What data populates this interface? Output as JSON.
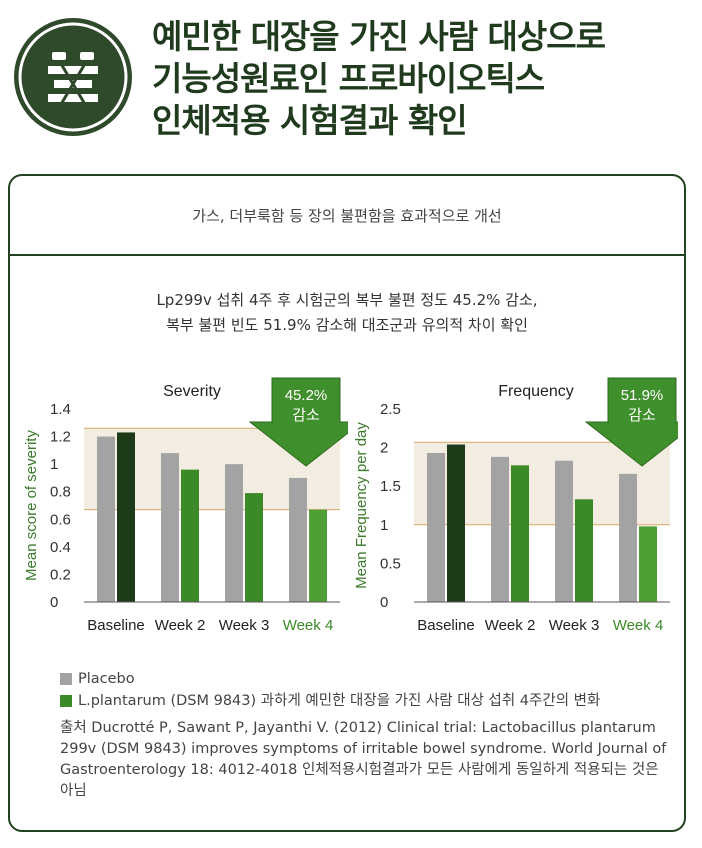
{
  "header": {
    "title_lines": [
      "예민한 대장을 가진 사람 대상으로",
      "기능성원료인 프로바이오틱스",
      "인체적용 시험결과 확인"
    ]
  },
  "card": {
    "heading": "가스, 더부룩함 등 장의 불편함을 효과적으로 개선",
    "summary_lines": [
      "Lp299v 섭취 4주 후 시험군의 복부 불편 정도 45.2% 감소,",
      "복부 불편 빈도 51.9% 감소해 대조군과 유의적 차이 확인"
    ]
  },
  "colors": {
    "placebo": "#a3a3a3",
    "treatment_dark": "#1d3b19",
    "treatment": "#3b8a27",
    "treatment_light": "#4f9f35",
    "band": "#f3ece1",
    "band_line": "#d8a86a",
    "badge": "#3f8f2c"
  },
  "chart_data": [
    {
      "type": "bar",
      "title": "Severity",
      "ylabel": "Mean score of severity",
      "categories": [
        "Baseline",
        "Week 2",
        "Week 3",
        "Week 4"
      ],
      "ylim": [
        0,
        1.4
      ],
      "yticks": [
        "0",
        "0.2",
        "0.4",
        "0.6",
        "0.8",
        "1",
        "1.2",
        "1.4"
      ],
      "ytick_values": [
        0,
        0.2,
        0.4,
        0.6,
        0.8,
        1.0,
        1.2,
        1.4
      ],
      "series": [
        {
          "name": "Placebo",
          "values": [
            1.2,
            1.08,
            1.0,
            0.9
          ]
        },
        {
          "name": "L.plantarum (DSM 9843)",
          "values": [
            1.23,
            0.96,
            0.79,
            0.67
          ]
        }
      ],
      "band": [
        0.67,
        1.26
      ],
      "badge": {
        "value": "45.2%",
        "label": "감소"
      }
    },
    {
      "type": "bar",
      "title": "Frequency",
      "ylabel": "Mean Frequency per day",
      "categories": [
        "Baseline",
        "Week 2",
        "Week 3",
        "Week 4"
      ],
      "ylim": [
        0,
        2.5
      ],
      "yticks": [
        "0",
        "0.5",
        "1",
        "1.5",
        "2",
        "2.5"
      ],
      "ytick_values": [
        0,
        0.5,
        1.0,
        1.5,
        2.0,
        2.5
      ],
      "series": [
        {
          "name": "Placebo",
          "values": [
            1.93,
            1.88,
            1.83,
            1.66
          ]
        },
        {
          "name": "L.plantarum (DSM 9843)",
          "values": [
            2.04,
            1.77,
            1.33,
            0.98
          ]
        }
      ],
      "band": [
        1.0,
        2.07
      ],
      "badge": {
        "value": "51.9%",
        "label": "감소"
      }
    }
  ],
  "legend": {
    "placebo": "Placebo",
    "treatment": "L.plantarum (DSM 9843) 과하게 예민한 대장을 가진 사람 대상 섭취 4주간의 변화"
  },
  "source": "출처 Ducrotté P, Sawant P, Jayanthi V. (2012) Clinical trial: Lactobacillus plantarum 299v (DSM 9843) improves symptoms of irritable bowel syndrome. World Journal of Gastroenterology 18: 4012-4018 인체적용시험결과가 모든 사람에게 동일하게 적용되는 것은 아님"
}
